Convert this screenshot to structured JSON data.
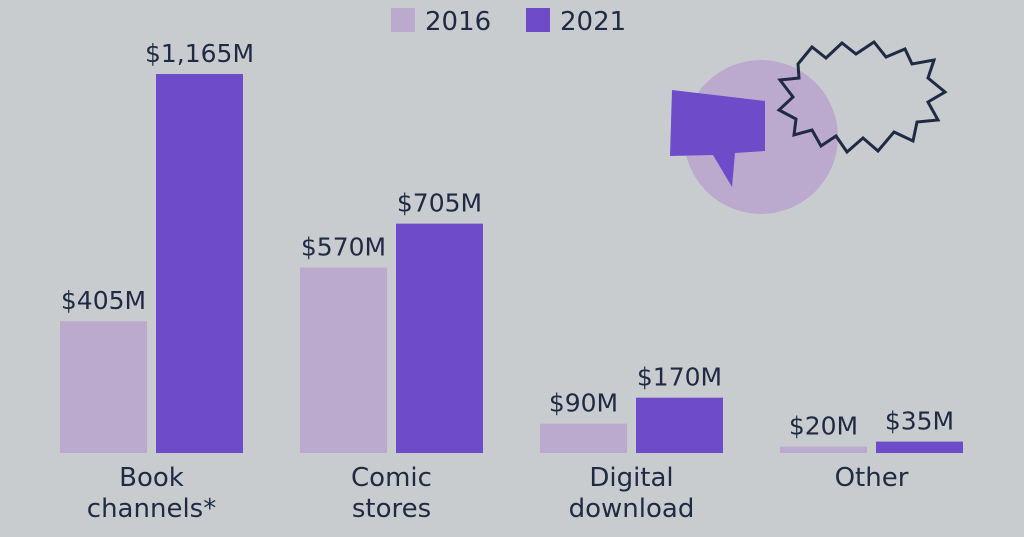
{
  "chart_data": {
    "type": "bar",
    "title": "",
    "xlabel": "",
    "ylabel": "",
    "categories": [
      [
        "Book",
        "channels*"
      ],
      [
        "Comic",
        "stores"
      ],
      [
        "Digital",
        "download"
      ],
      [
        "Other"
      ]
    ],
    "series": [
      {
        "name": "2016",
        "color": "#bbaacd",
        "values": [
          405,
          570,
          90,
          20
        ],
        "labels": [
          "$405M",
          "$570M",
          "$90M",
          "$20M"
        ]
      },
      {
        "name": "2021",
        "color": "#6d4bc9",
        "values": [
          1165,
          705,
          170,
          35
        ],
        "labels": [
          "$1,165M",
          "$705M",
          "$170M",
          "$35M"
        ]
      }
    ],
    "ylim": [
      0,
      1165
    ],
    "grid": false,
    "legend_position": "top-center"
  },
  "decoration": {
    "speech_bubble_color": "#6d4bc9",
    "circle_color": "#bbaacd",
    "burst_outline_color": "#1f2a44",
    "icons": [
      "speech-bubble-icon",
      "burst-icon",
      "circle-backdrop"
    ]
  }
}
